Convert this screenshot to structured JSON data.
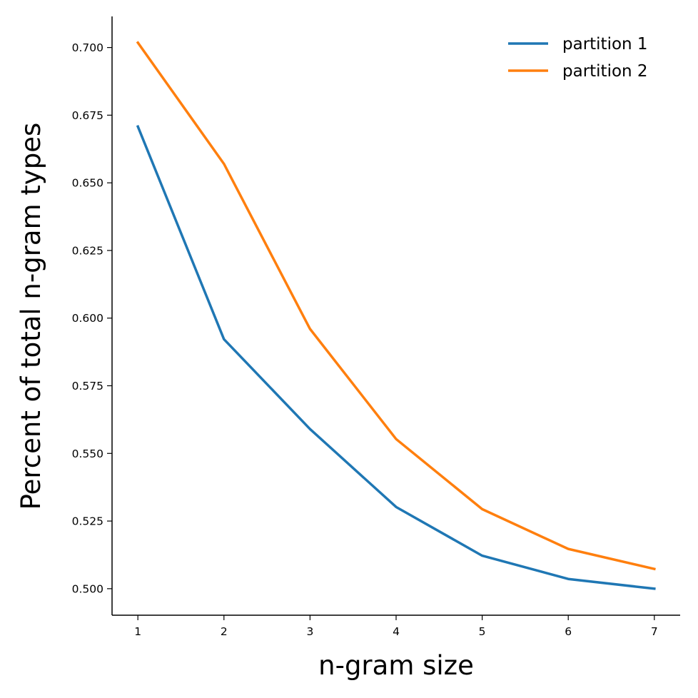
{
  "chart_data": {
    "type": "line",
    "title": "",
    "xlabel": "n-gram size",
    "ylabel": "Percent of total n-gram types",
    "x": [
      1,
      2,
      3,
      4,
      5,
      6,
      7
    ],
    "x_ticks": [
      "1",
      "2",
      "3",
      "4",
      "5",
      "6",
      "7"
    ],
    "xlim": [
      0.7,
      7.3
    ],
    "ylim": [
      0.4902,
      0.7115
    ],
    "y_ticks": [
      "0.500",
      "0.525",
      "0.550",
      "0.575",
      "0.600",
      "0.625",
      "0.650",
      "0.675",
      "0.700"
    ],
    "grid": false,
    "legend_position": "top-right",
    "series": [
      {
        "name": "partition 1",
        "color": "#1f77b4",
        "values": [
          0.6708,
          0.5922,
          0.559,
          0.5302,
          0.5122,
          0.5036,
          0.5
        ]
      },
      {
        "name": "partition 2",
        "color": "#ff7f0e",
        "values": [
          0.7018,
          0.657,
          0.596,
          0.5553,
          0.5294,
          0.5147,
          0.5073
        ]
      }
    ]
  }
}
